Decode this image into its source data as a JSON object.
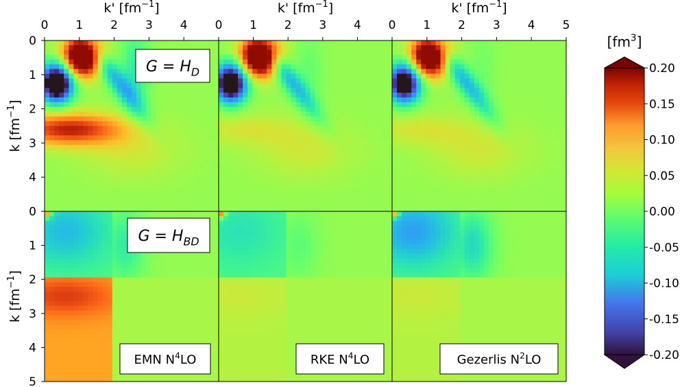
{
  "chart_data": {
    "type": "heatmap",
    "layout": "2x3 grid",
    "x_label": {
      "main": "k' [fm",
      "sup": "−1",
      "close": "]"
    },
    "y_label": {
      "main": "k [fm",
      "sup": "−1",
      "close": "]"
    },
    "x_ticks_left": [
      "0",
      "1",
      "2",
      "3",
      "4"
    ],
    "x_ticks_right": [
      "0",
      "1",
      "2",
      "3",
      "4",
      "5"
    ],
    "y_ticks_top": [
      "0",
      "1",
      "2",
      "3",
      "4"
    ],
    "y_ticks_bottom": [
      "0",
      "1",
      "2",
      "3",
      "4",
      "5"
    ],
    "x_range": [
      0,
      5
    ],
    "y_range": [
      0,
      5
    ],
    "rows": [
      {
        "label": {
          "pre": "G = H",
          "sub": "D"
        },
        "label_panel": 0
      },
      {
        "label": {
          "pre": "G = H",
          "sub": "BD"
        },
        "label_panel": 0
      }
    ],
    "columns": [
      {
        "label": {
          "pre": "EMN N",
          "sup": "4",
          "post": "LO"
        }
      },
      {
        "label": {
          "pre": "RKE N",
          "sup": "4",
          "post": "LO"
        }
      },
      {
        "label": {
          "pre": "Gezerlis N",
          "sup": "2",
          "post": "LO"
        }
      }
    ],
    "colorbar": {
      "title": {
        "pre": "[fm",
        "sup": "3",
        "post": "]"
      },
      "min": -0.2,
      "max": 0.2,
      "extend": "both",
      "ticks": [
        "0.20",
        "0.15",
        "0.10",
        "0.05",
        "0.00",
        "-0.05",
        "-0.10",
        "-0.15",
        "-0.20"
      ],
      "colormap": "turbo"
    }
  }
}
